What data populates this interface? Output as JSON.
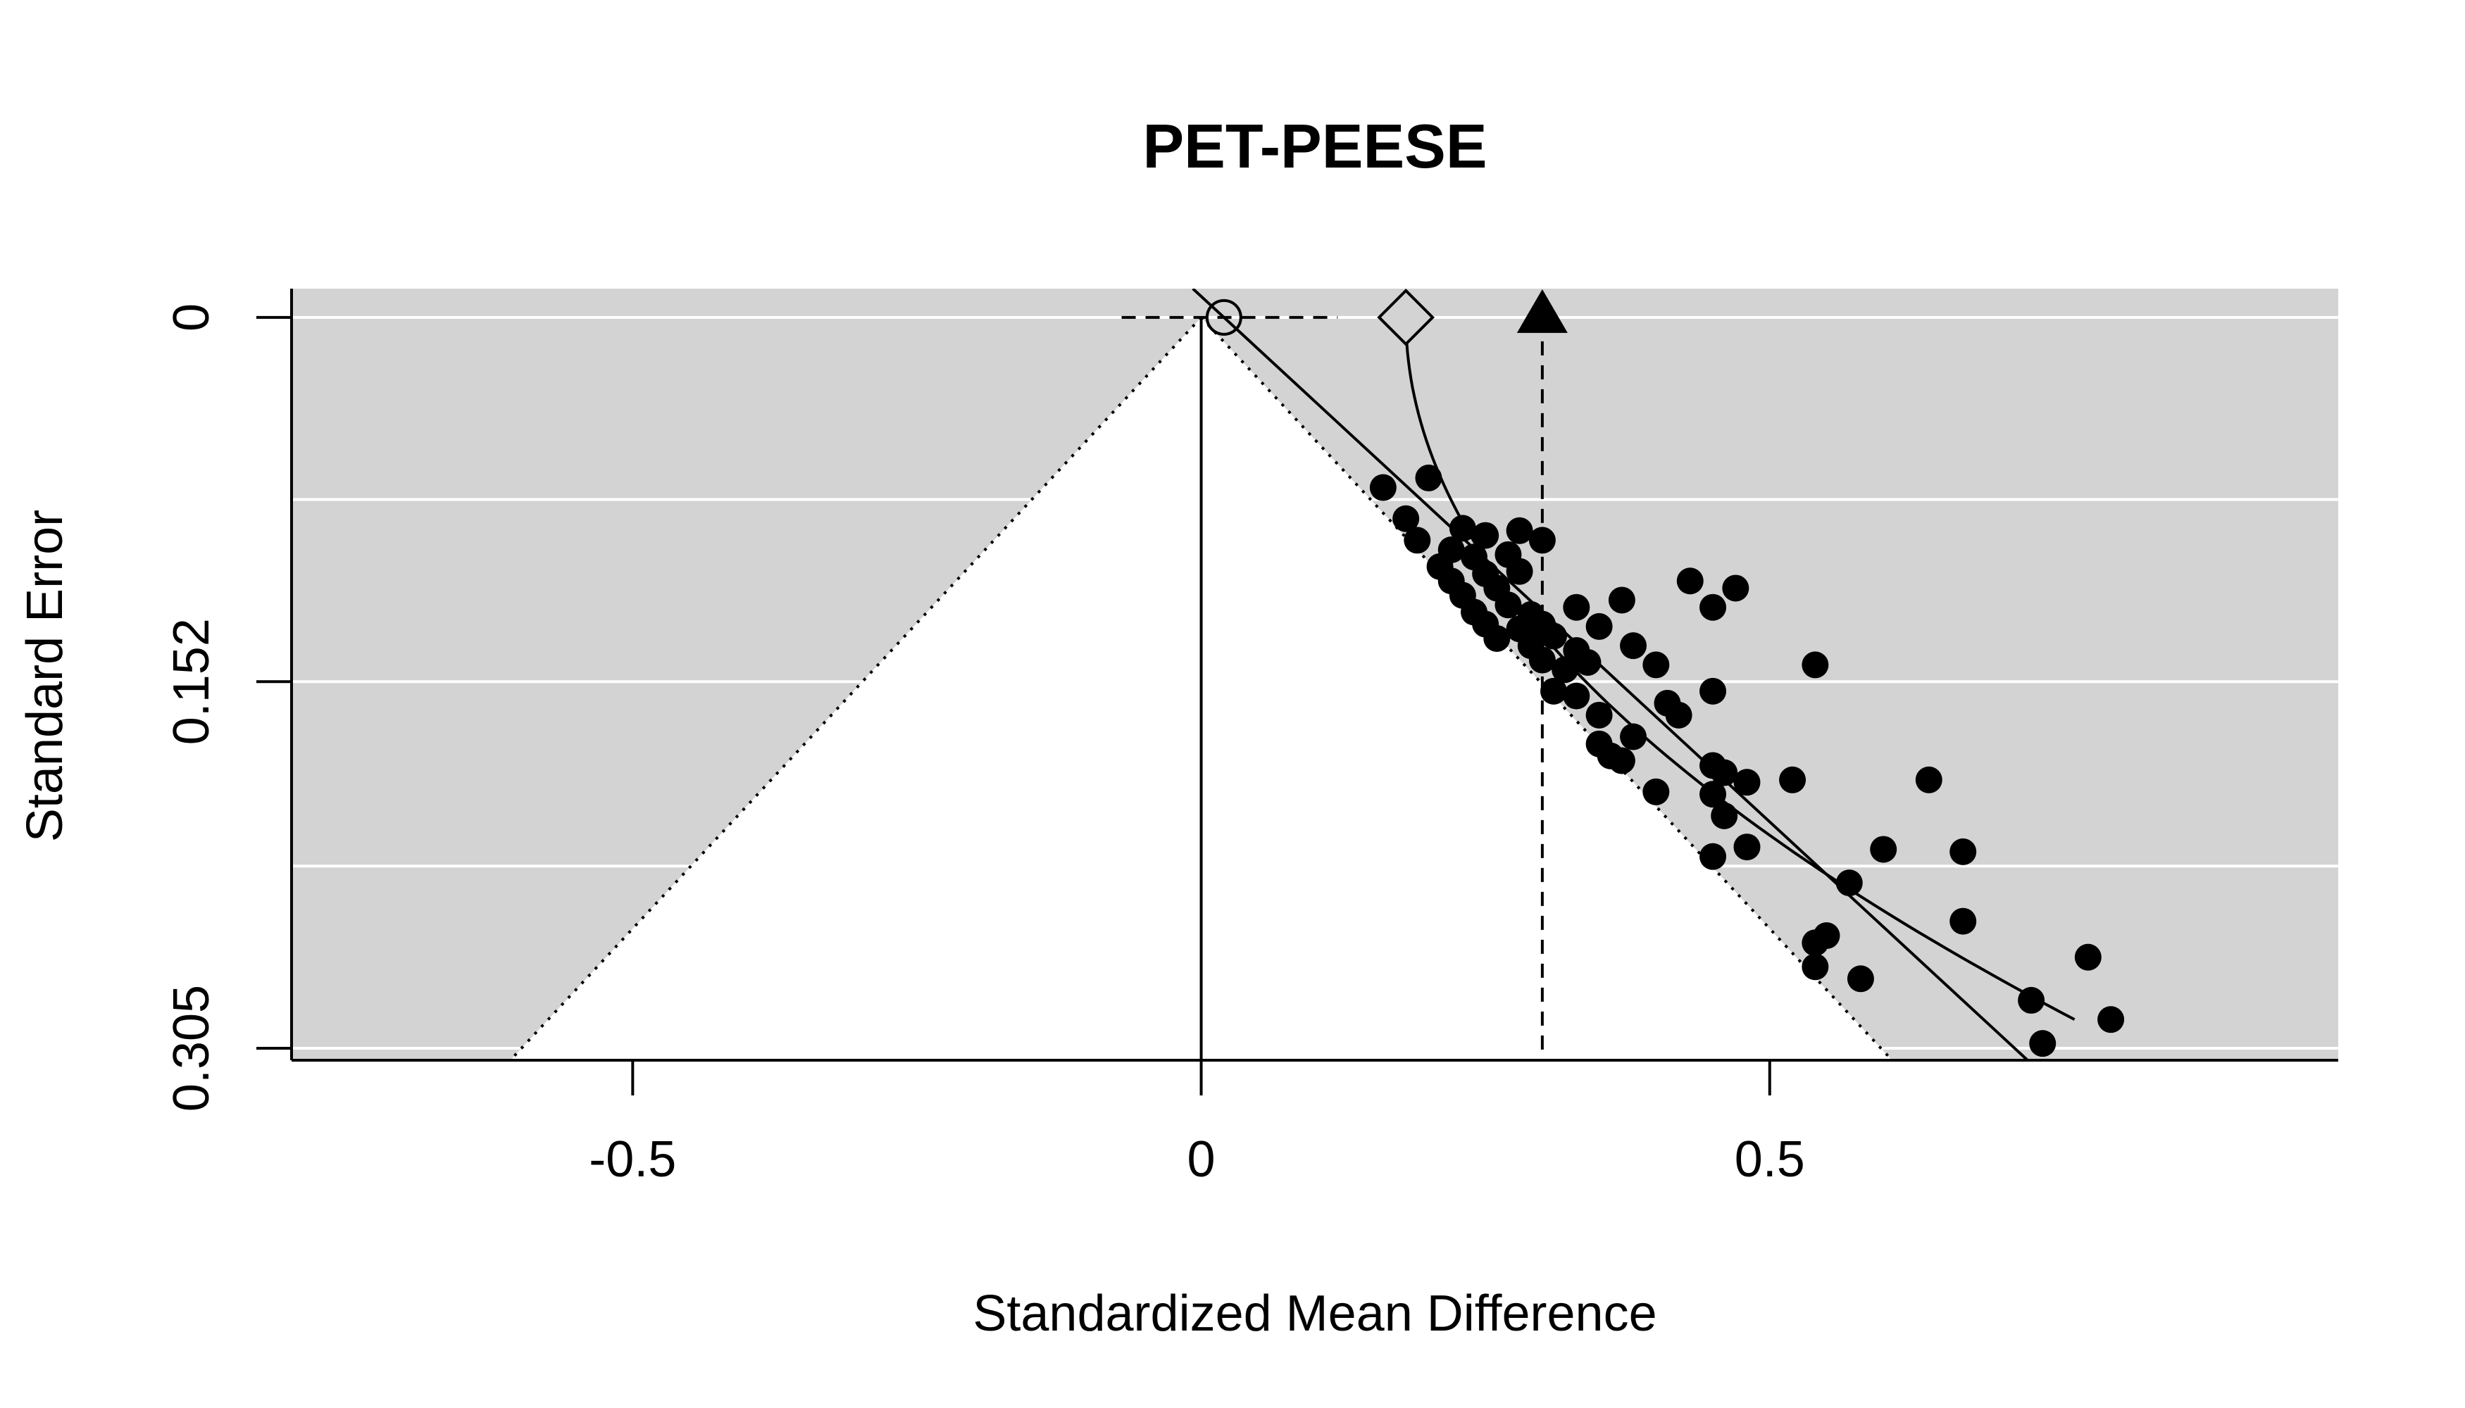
{
  "chart_data": {
    "type": "scatter",
    "title": "PET-PEESE",
    "xlabel": "Standardized Mean Difference",
    "ylabel": "Standard Error",
    "xlim": [
      -0.8,
      1.0
    ],
    "ylim": [
      0.31,
      -0.012
    ],
    "y_reversed": true,
    "x_ticks": [
      {
        "value": -0.5,
        "label": "-0.5"
      },
      {
        "value": 0,
        "label": "0"
      },
      {
        "value": 0.5,
        "label": "0.5"
      }
    ],
    "y_ticks": [
      {
        "value": 0,
        "label": "0"
      },
      {
        "value": 0.152,
        "label": "0.152"
      },
      {
        "value": 0.305,
        "label": "0.305"
      }
    ],
    "y_gridlines": [
      0,
      0.076,
      0.152,
      0.229,
      0.305
    ],
    "background_color": "#d3d3d3",
    "funnel_center": 0,
    "funnel_multiplier": 1.96,
    "estimates": {
      "pet_estimate": 0.02,
      "peese_estimate": 0.18,
      "random_effects_estimate": 0.3,
      "ci_lower": -0.07,
      "ci_upper": 0.12
    },
    "pet_line": {
      "intercept": 0.02,
      "slope": 2.28
    },
    "peese_curve": {
      "intercept": 0.18,
      "coef_se_squared": 6.85
    },
    "points": [
      {
        "x": 0.16,
        "y": 0.071
      },
      {
        "x": 0.2,
        "y": 0.067
      },
      {
        "x": 0.18,
        "y": 0.084
      },
      {
        "x": 0.19,
        "y": 0.093
      },
      {
        "x": 0.23,
        "y": 0.088
      },
      {
        "x": 0.25,
        "y": 0.091
      },
      {
        "x": 0.28,
        "y": 0.089
      },
      {
        "x": 0.3,
        "y": 0.093
      },
      {
        "x": 0.22,
        "y": 0.097
      },
      {
        "x": 0.24,
        "y": 0.1
      },
      {
        "x": 0.27,
        "y": 0.099
      },
      {
        "x": 0.21,
        "y": 0.104
      },
      {
        "x": 0.22,
        "y": 0.11
      },
      {
        "x": 0.25,
        "y": 0.107
      },
      {
        "x": 0.28,
        "y": 0.106
      },
      {
        "x": 0.23,
        "y": 0.116
      },
      {
        "x": 0.26,
        "y": 0.113
      },
      {
        "x": 0.24,
        "y": 0.123
      },
      {
        "x": 0.27,
        "y": 0.12
      },
      {
        "x": 0.29,
        "y": 0.124
      },
      {
        "x": 0.25,
        "y": 0.128
      },
      {
        "x": 0.28,
        "y": 0.13
      },
      {
        "x": 0.3,
        "y": 0.128
      },
      {
        "x": 0.26,
        "y": 0.134
      },
      {
        "x": 0.29,
        "y": 0.137
      },
      {
        "x": 0.31,
        "y": 0.133
      },
      {
        "x": 0.33,
        "y": 0.121
      },
      {
        "x": 0.35,
        "y": 0.129
      },
      {
        "x": 0.33,
        "y": 0.139
      },
      {
        "x": 0.3,
        "y": 0.143
      },
      {
        "x": 0.32,
        "y": 0.147
      },
      {
        "x": 0.37,
        "y": 0.118
      },
      {
        "x": 0.38,
        "y": 0.137
      },
      {
        "x": 0.34,
        "y": 0.144
      },
      {
        "x": 0.4,
        "y": 0.145
      },
      {
        "x": 0.43,
        "y": 0.11
      },
      {
        "x": 0.47,
        "y": 0.113
      },
      {
        "x": 0.45,
        "y": 0.121
      },
      {
        "x": 0.54,
        "y": 0.145
      },
      {
        "x": 0.31,
        "y": 0.156
      },
      {
        "x": 0.33,
        "y": 0.158
      },
      {
        "x": 0.35,
        "y": 0.166
      },
      {
        "x": 0.41,
        "y": 0.161
      },
      {
        "x": 0.42,
        "y": 0.166
      },
      {
        "x": 0.45,
        "y": 0.156
      },
      {
        "x": 0.38,
        "y": 0.175
      },
      {
        "x": 0.35,
        "y": 0.178
      },
      {
        "x": 0.36,
        "y": 0.183
      },
      {
        "x": 0.37,
        "y": 0.185
      },
      {
        "x": 0.45,
        "y": 0.187
      },
      {
        "x": 0.46,
        "y": 0.19
      },
      {
        "x": 0.48,
        "y": 0.194
      },
      {
        "x": 0.45,
        "y": 0.199
      },
      {
        "x": 0.4,
        "y": 0.198
      },
      {
        "x": 0.46,
        "y": 0.208
      },
      {
        "x": 0.52,
        "y": 0.193
      },
      {
        "x": 0.64,
        "y": 0.193
      },
      {
        "x": 0.48,
        "y": 0.221
      },
      {
        "x": 0.45,
        "y": 0.225
      },
      {
        "x": 0.6,
        "y": 0.222
      },
      {
        "x": 0.67,
        "y": 0.223
      },
      {
        "x": 0.57,
        "y": 0.236
      },
      {
        "x": 0.67,
        "y": 0.252
      },
      {
        "x": 0.55,
        "y": 0.258
      },
      {
        "x": 0.54,
        "y": 0.261
      },
      {
        "x": 0.54,
        "y": 0.271
      },
      {
        "x": 0.58,
        "y": 0.276
      },
      {
        "x": 0.78,
        "y": 0.267
      },
      {
        "x": 0.73,
        "y": 0.285
      },
      {
        "x": 0.8,
        "y": 0.293
      },
      {
        "x": 0.74,
        "y": 0.303
      }
    ]
  }
}
